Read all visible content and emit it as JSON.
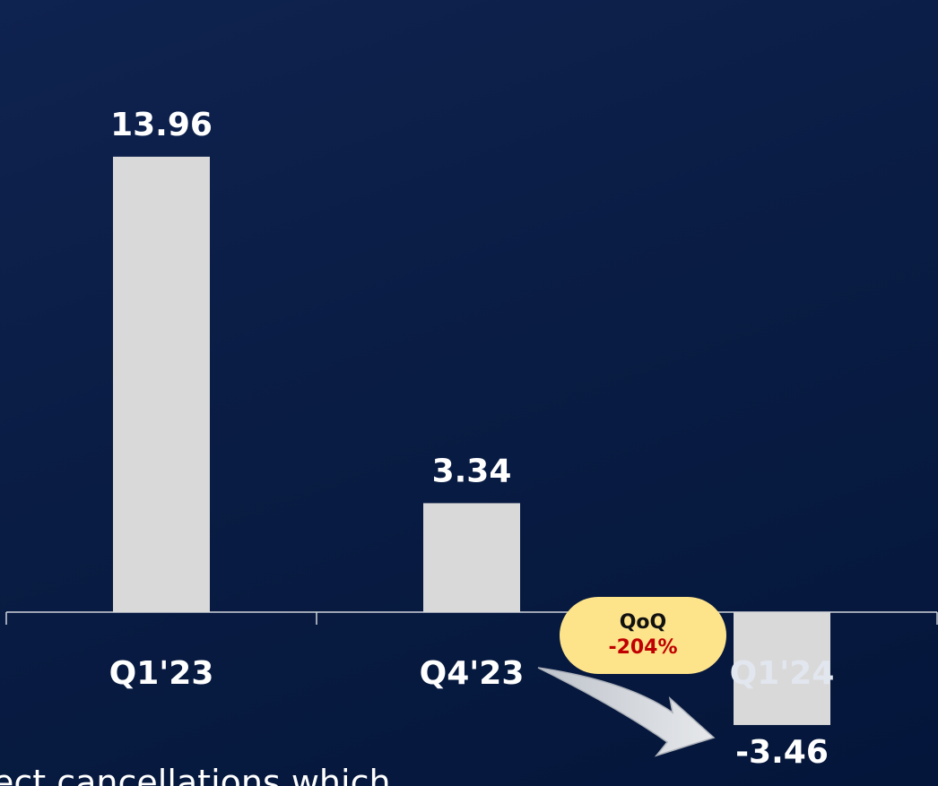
{
  "chart_data": {
    "type": "bar",
    "categories": [
      "Q1'23",
      "Q4'23",
      "Q1'24"
    ],
    "values": [
      13.96,
      3.34,
      -3.46
    ],
    "value_labels": [
      "13.96",
      "3.34",
      "-3.46"
    ],
    "title": "",
    "xlabel": "",
    "ylabel": "",
    "grid": false,
    "bar_color": "#d9d9d9",
    "annotation": {
      "line1": "QoQ",
      "line2": "-204%",
      "line2_color": "#c00000",
      "badge_color": "#fde38a"
    }
  },
  "footnote": "ect cancellations which"
}
